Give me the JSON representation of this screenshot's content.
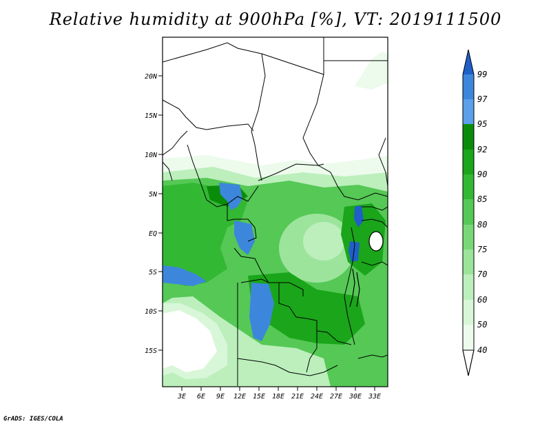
{
  "title": "Relative humidity at 900hPa [%], VT: 2019111500",
  "credit": "GrADS: IGES/COLA",
  "map": {
    "lat_ticks": [
      "20N",
      "15N",
      "10N",
      "5N",
      "EQ",
      "5S",
      "10S",
      "15S"
    ],
    "lon_ticks": [
      "3E",
      "6E",
      "9E",
      "12E",
      "15E",
      "18E",
      "21E",
      "24E",
      "27E",
      "30E",
      "33E"
    ]
  },
  "colorbar": {
    "labels": [
      "99",
      "97",
      "95",
      "92",
      "90",
      "85",
      "80",
      "75",
      "70",
      "60",
      "50",
      "40"
    ],
    "colors": {
      "c99": "#1f5fc8",
      "c97": "#3c87dc",
      "c95": "#5aa0ea",
      "c92": "#0a8c0a",
      "c90": "#1aa51a",
      "c85": "#33b833",
      "c80": "#55c855",
      "c75": "#78d878",
      "c70": "#9ce49c",
      "c60": "#bcefbc",
      "c50": "#d8f7d8",
      "c40": "#ecfbec",
      "below": "#ffffff"
    }
  }
}
